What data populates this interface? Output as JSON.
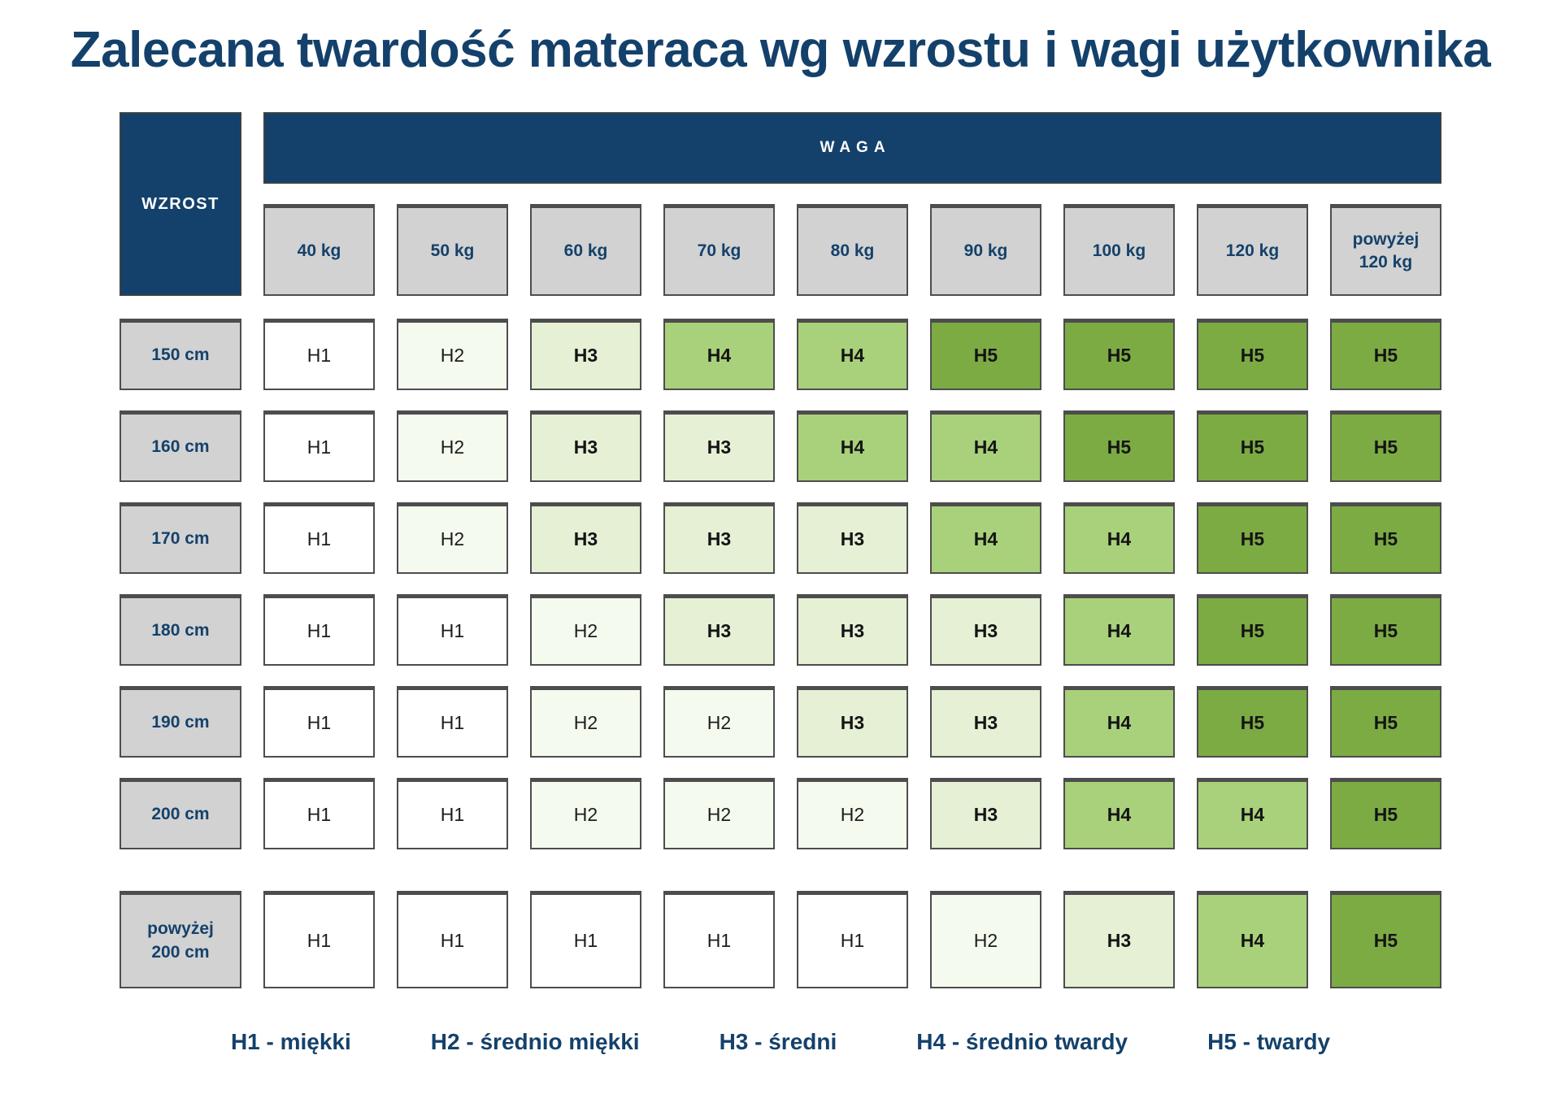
{
  "title": "Zalecana twardość materaca wg wzrostu i wagi użytkownika",
  "colors": {
    "navy": "#14416b",
    "gray": "#d2d2d2",
    "cell_border": "#4d4d4d",
    "levels": {
      "H1": "#ffffff",
      "H2": "#f5faee",
      "H3": "#e5f0d5",
      "H4": "#a9d17b",
      "H5": "#7cab44"
    }
  },
  "table": {
    "weight_header": "WAGA",
    "height_header": "WZROST",
    "columns": [
      "40 kg",
      "50 kg",
      "60 kg",
      "70 kg",
      "80 kg",
      "90 kg",
      "100 kg",
      "120 kg",
      "powyżej\n120 kg"
    ],
    "rows": [
      {
        "label": "150 cm",
        "values": [
          "H1",
          "H2",
          "H3",
          "H4",
          "H4",
          "H5",
          "H5",
          "H5",
          "H5"
        ]
      },
      {
        "label": "160 cm",
        "values": [
          "H1",
          "H2",
          "H3",
          "H3",
          "H4",
          "H4",
          "H5",
          "H5",
          "H5"
        ]
      },
      {
        "label": "170 cm",
        "values": [
          "H1",
          "H2",
          "H3",
          "H3",
          "H3",
          "H4",
          "H4",
          "H5",
          "H5"
        ]
      },
      {
        "label": "180 cm",
        "values": [
          "H1",
          "H1",
          "H2",
          "H3",
          "H3",
          "H3",
          "H4",
          "H5",
          "H5"
        ]
      },
      {
        "label": "190 cm",
        "values": [
          "H1",
          "H1",
          "H2",
          "H2",
          "H3",
          "H3",
          "H4",
          "H5",
          "H5"
        ]
      },
      {
        "label": "200 cm",
        "values": [
          "H1",
          "H1",
          "H2",
          "H2",
          "H2",
          "H3",
          "H4",
          "H4",
          "H5"
        ]
      },
      {
        "label": "powyżej\n200 cm",
        "values": [
          "H1",
          "H1",
          "H1",
          "H1",
          "H1",
          "H2",
          "H3",
          "H4",
          "H5"
        ]
      }
    ]
  },
  "legend": {
    "items": [
      "H1 - miękki",
      "H2 - średnio miękki",
      "H3 - średni",
      "H4 - średnio twardy",
      "H5 - twardy"
    ]
  },
  "chart_data": {
    "type": "heatmap",
    "title": "Zalecana twardość materaca wg wzrostu i wagi użytkownika",
    "x_axis_label": "WAGA",
    "y_axis_label": "WZROST",
    "x_categories": [
      "40 kg",
      "50 kg",
      "60 kg",
      "70 kg",
      "80 kg",
      "90 kg",
      "100 kg",
      "120 kg",
      "powyżej 120 kg"
    ],
    "y_categories": [
      "150 cm",
      "160 cm",
      "170 cm",
      "180 cm",
      "190 cm",
      "200 cm",
      "powyżej 200 cm"
    ],
    "values": [
      [
        "H1",
        "H2",
        "H3",
        "H4",
        "H4",
        "H5",
        "H5",
        "H5",
        "H5"
      ],
      [
        "H1",
        "H2",
        "H3",
        "H3",
        "H4",
        "H4",
        "H5",
        "H5",
        "H5"
      ],
      [
        "H1",
        "H2",
        "H3",
        "H3",
        "H3",
        "H4",
        "H4",
        "H5",
        "H5"
      ],
      [
        "H1",
        "H1",
        "H2",
        "H3",
        "H3",
        "H3",
        "H4",
        "H5",
        "H5"
      ],
      [
        "H1",
        "H1",
        "H2",
        "H2",
        "H3",
        "H3",
        "H4",
        "H5",
        "H5"
      ],
      [
        "H1",
        "H1",
        "H2",
        "H2",
        "H2",
        "H3",
        "H4",
        "H4",
        "H5"
      ],
      [
        "H1",
        "H1",
        "H1",
        "H1",
        "H1",
        "H2",
        "H3",
        "H4",
        "H5"
      ]
    ],
    "value_scale": {
      "H1": "miękki",
      "H2": "średnio miękki",
      "H3": "średni",
      "H4": "średnio twardy",
      "H5": "twardy"
    },
    "cell_colors": {
      "H1": "#ffffff",
      "H2": "#f5faee",
      "H3": "#e5f0d5",
      "H4": "#a9d17b",
      "H5": "#7cab44"
    },
    "legend_position": "bottom",
    "grid": false
  }
}
